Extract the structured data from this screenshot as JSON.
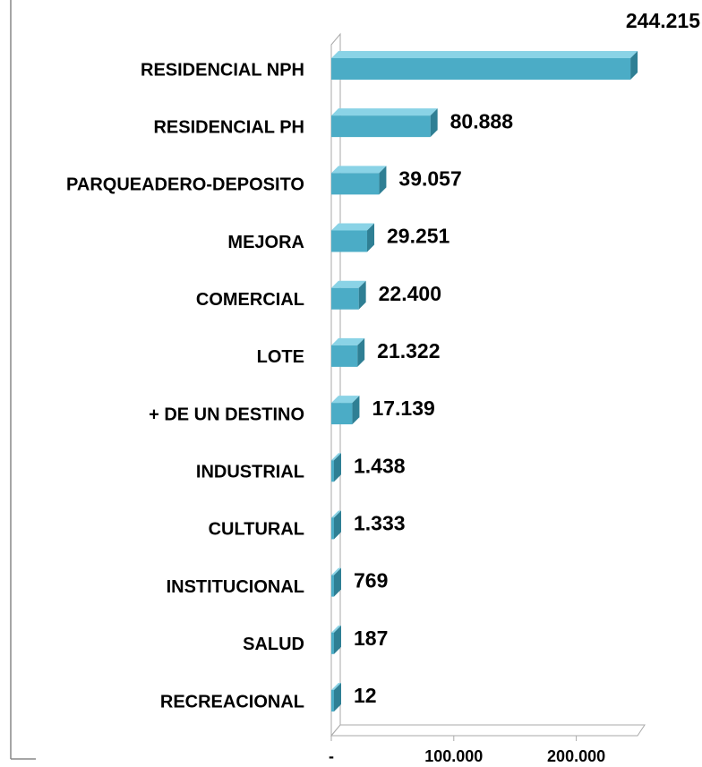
{
  "chart_data": {
    "type": "bar",
    "orientation": "horizontal",
    "categories": [
      "RESIDENCIAL NPH",
      "RESIDENCIAL PH",
      "PARQUEADERO-DEPOSITO",
      "MEJORA",
      "COMERCIAL",
      "LOTE",
      "+ DE UN DESTINO",
      "INDUSTRIAL",
      "CULTURAL",
      "INSTITUCIONAL",
      "SALUD",
      "RECREACIONAL"
    ],
    "values": [
      244215,
      80888,
      39057,
      29251,
      22400,
      21322,
      17139,
      1438,
      1333,
      769,
      187,
      12
    ],
    "value_labels": [
      "244.215",
      "80.888",
      "39.057",
      "29.251",
      "22.400",
      "21.322",
      "17.139",
      "1.438",
      "1.333",
      "769",
      "187",
      "12"
    ],
    "color": "#4bacc6",
    "xlim": [
      0,
      250000
    ],
    "xticks": [
      {
        "value": 0,
        "label": "-"
      },
      {
        "value": 100000,
        "label": "100.000"
      },
      {
        "value": 200000,
        "label": "200.000"
      }
    ]
  }
}
